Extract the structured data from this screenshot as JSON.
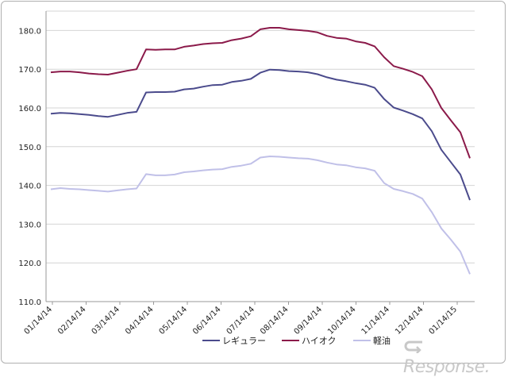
{
  "chart_data": {
    "type": "line",
    "title": "",
    "xlabel": "",
    "ylabel": "",
    "ylim": [
      110,
      185
    ],
    "yticks": [
      110,
      120,
      130,
      140,
      150,
      160,
      170,
      180
    ],
    "ytick_labels": [
      "110.0",
      "120.0",
      "130.0",
      "140.0",
      "150.0",
      "160.0",
      "170.0",
      "180.0"
    ],
    "x_tick_labels": [
      "01/14/14",
      "02/14/14",
      "03/14/14",
      "04/14/14",
      "05/14/14",
      "06/14/14",
      "07/14/14",
      "08/14/14",
      "09/14/14",
      "10/14/14",
      "11/14/14",
      "12/14/14",
      "01/14/15"
    ],
    "grid": "horizontal",
    "legend_position": "bottom",
    "series": [
      {
        "name": "レギュラー",
        "color": "#4b4b8c",
        "values": [
          158.5,
          158.7,
          158.6,
          158.4,
          158.2,
          157.9,
          157.7,
          158.2,
          158.7,
          159.0,
          164.0,
          164.1,
          164.1,
          164.2,
          164.8,
          165.0,
          165.5,
          165.9,
          166.0,
          166.7,
          167.0,
          167.5,
          169.1,
          169.9,
          169.8,
          169.5,
          169.4,
          169.2,
          168.7,
          167.9,
          167.3,
          166.9,
          166.4,
          166.0,
          165.2,
          162.3,
          160.1,
          159.3,
          158.4,
          157.3,
          154.0,
          149.2,
          146.0,
          142.8,
          136.2
        ]
      },
      {
        "name": "ハイオク",
        "color": "#8b1a4a",
        "values": [
          169.2,
          169.4,
          169.4,
          169.2,
          168.9,
          168.7,
          168.6,
          169.1,
          169.6,
          170.0,
          175.1,
          175.0,
          175.1,
          175.1,
          175.8,
          176.1,
          176.5,
          176.7,
          176.8,
          177.5,
          177.9,
          178.5,
          180.3,
          180.7,
          180.7,
          180.3,
          180.1,
          179.9,
          179.5,
          178.6,
          178.1,
          177.9,
          177.2,
          176.8,
          175.9,
          173.1,
          170.8,
          170.1,
          169.3,
          168.2,
          164.8,
          160.0,
          156.8,
          153.7,
          147.0
        ]
      },
      {
        "name": "軽油",
        "color": "#c0c0e8",
        "values": [
          139.0,
          139.3,
          139.1,
          139.0,
          138.8,
          138.6,
          138.4,
          138.7,
          139.0,
          139.2,
          142.9,
          142.6,
          142.6,
          142.8,
          143.4,
          143.6,
          143.9,
          144.1,
          144.2,
          144.8,
          145.1,
          145.6,
          147.2,
          147.5,
          147.4,
          147.2,
          147.0,
          146.9,
          146.5,
          145.9,
          145.4,
          145.2,
          144.7,
          144.4,
          143.8,
          140.6,
          139.1,
          138.5,
          137.8,
          136.6,
          133.1,
          128.9,
          126.0,
          122.9,
          117.1
        ]
      }
    ]
  },
  "watermark": {
    "icon": "response-arrow-icon",
    "text": "Response."
  }
}
